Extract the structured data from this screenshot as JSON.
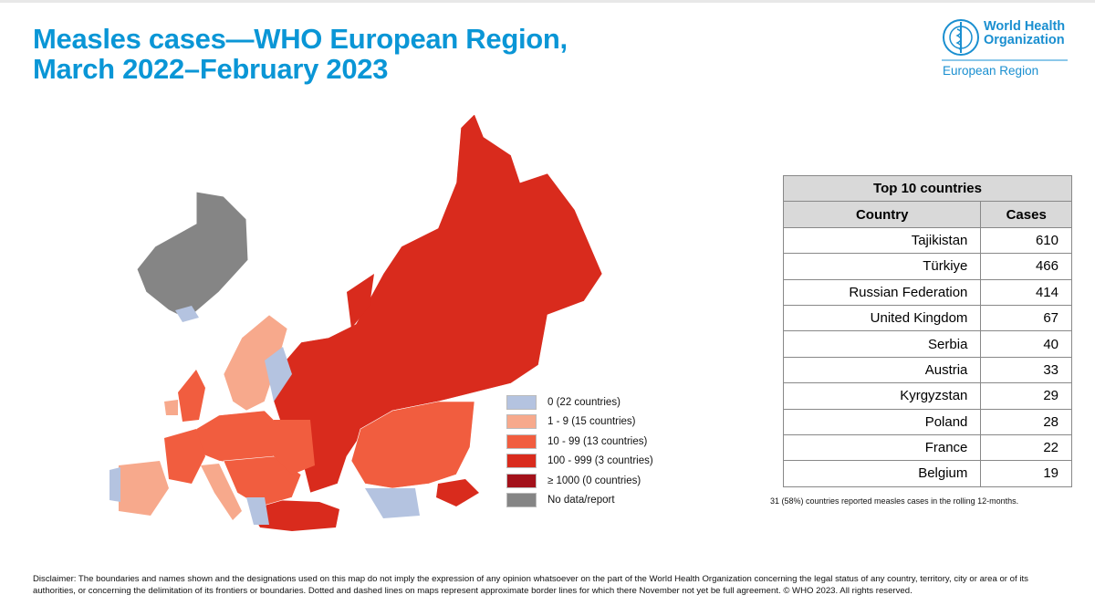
{
  "title_line1": "Measles cases—WHO European Region,",
  "title_line2": "March 2022–February 2023",
  "logo": {
    "name_line1": "World Health",
    "name_line2": "Organization",
    "region": "European Region"
  },
  "legend": [
    {
      "label": "0 (22 countries)",
      "color": "#b4c3e0"
    },
    {
      "label": "1 - 9 (15 countries)",
      "color": "#f7a98c"
    },
    {
      "label": "10 - 99 (13 countries)",
      "color": "#f15d3f"
    },
    {
      "label": "100 - 999 (3 countries)",
      "color": "#d92b1d"
    },
    {
      "label": "≥ 1000 (0 countries)",
      "color": "#a3111a"
    },
    {
      "label": "No data/report",
      "color": "#858585"
    }
  ],
  "table": {
    "title": "Top 10 countries",
    "headers": [
      "Country",
      "Cases"
    ],
    "rows": [
      [
        "Tajikistan",
        "610"
      ],
      [
        "Türkiye",
        "466"
      ],
      [
        "Russian Federation",
        "414"
      ],
      [
        "United Kingdom",
        "67"
      ],
      [
        "Serbia",
        "40"
      ],
      [
        "Austria",
        "33"
      ],
      [
        "Kyrgyzstan",
        "29"
      ],
      [
        "Poland",
        "28"
      ],
      [
        "France",
        "22"
      ],
      [
        "Belgium",
        "19"
      ]
    ]
  },
  "footnote": "31 (58%) countries reported measles cases in the rolling 12-months.",
  "disclaimer": "Disclaimer: The boundaries and names shown and the designations used on this map do not imply the expression of any opinion whatsoever on the part of the World Health Organization concerning the legal status of any country, territory, city or area or of its authorities, or concerning the delimitation of its frontiers or boundaries. Dotted and dashed lines on maps represent approximate border lines for which there November not yet be full agreement. © WHO 2023. All rights reserved."
}
